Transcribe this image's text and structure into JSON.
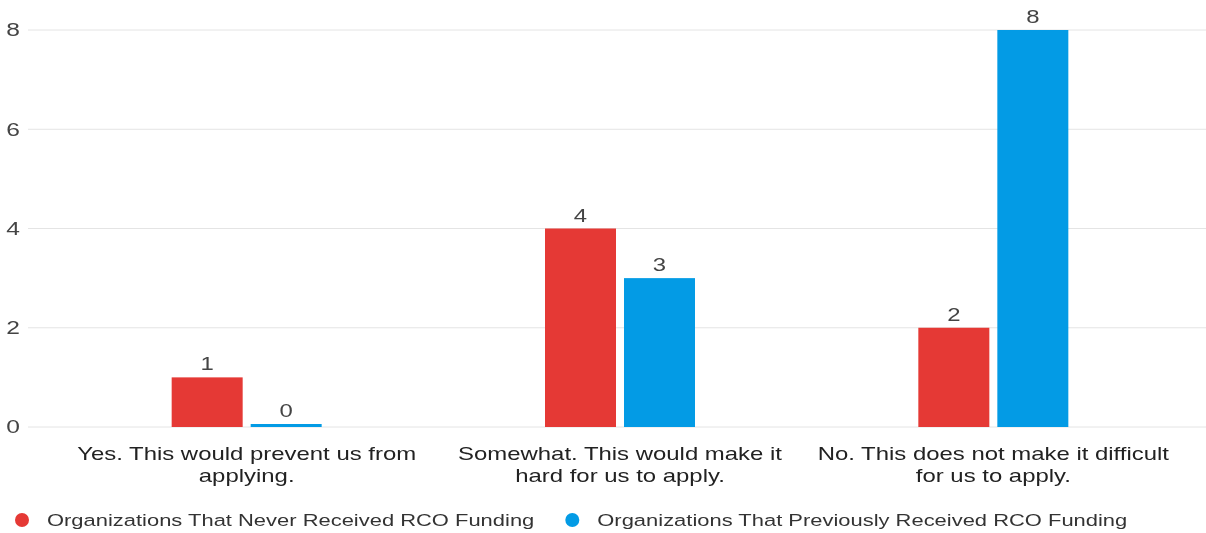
{
  "chart_data": {
    "type": "bar",
    "categories": [
      "Yes. This would prevent us from applying.",
      "Somewhat. This would make it hard for us to apply.",
      "No. This does not make it difficult for us to apply."
    ],
    "series": [
      {
        "name": "Organizations That Never Received RCO Funding",
        "color": "#e53935",
        "values": [
          1,
          4,
          2
        ]
      },
      {
        "name": "Organizations That Previously Received RCO Funding",
        "color": "#039be5",
        "values": [
          0,
          3,
          8
        ]
      }
    ],
    "ylim": [
      0,
      8
    ],
    "yticks": [
      0,
      2,
      4,
      6,
      8
    ],
    "grid": "y",
    "legend": "bottom",
    "data_labels": true
  }
}
